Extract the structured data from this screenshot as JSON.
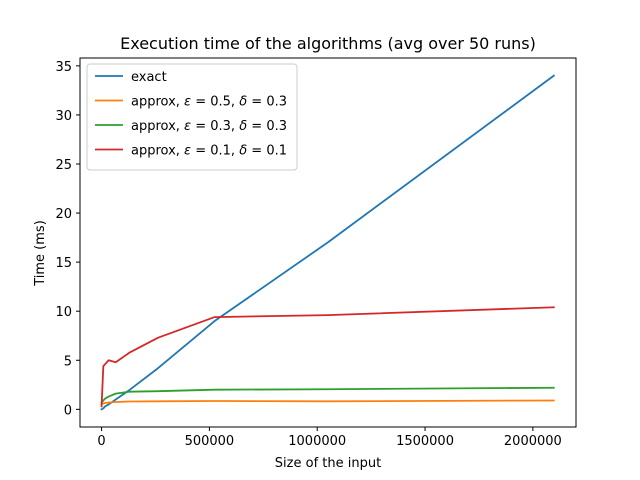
{
  "chart_data": {
    "type": "line",
    "title": "Execution time of the algorithms (avg over 50 runs)",
    "xlabel": "Size of the input",
    "ylabel": "Time (ms)",
    "xlim": [
      -100000,
      2200000
    ],
    "ylim": [
      -1.8,
      35.8
    ],
    "x_ticks": [
      0,
      500000,
      1000000,
      1500000,
      2000000
    ],
    "x_tick_labels": [
      "0",
      "500000",
      "1000000",
      "1500000",
      "2000000"
    ],
    "y_ticks": [
      0,
      5,
      10,
      15,
      20,
      25,
      30,
      35
    ],
    "y_tick_labels": [
      "0",
      "5",
      "10",
      "15",
      "20",
      "25",
      "30",
      "35"
    ],
    "grid": false,
    "legend_position": "top-left",
    "series": [
      {
        "name": "exact",
        "color": "#1f77b4",
        "x": [
          0,
          8192,
          16384,
          32768,
          65536,
          131072,
          262144,
          524288,
          1048576,
          2097152
        ],
        "y": [
          0.0,
          0.1,
          0.3,
          0.5,
          1.0,
          2.0,
          4.2,
          9.0,
          17.0,
          34.0
        ]
      },
      {
        "name": "approx, ε = 0.5, δ = 0.3",
        "label_parts": [
          "approx, ",
          "ε",
          " = 0.5, ",
          "δ",
          " = 0.3"
        ],
        "color": "#ff7f0e",
        "x": [
          0,
          8192,
          16384,
          32768,
          65536,
          131072,
          262144,
          524288,
          1048576,
          2097152
        ],
        "y": [
          0.5,
          0.6,
          0.65,
          0.7,
          0.75,
          0.8,
          0.82,
          0.85,
          0.82,
          0.9
        ]
      },
      {
        "name": "approx, ε = 0.3, δ = 0.3",
        "label_parts": [
          "approx, ",
          "ε",
          " = 0.3, ",
          "δ",
          " = 0.3"
        ],
        "color": "#2ca02c",
        "x": [
          0,
          8192,
          16384,
          32768,
          65536,
          131072,
          262144,
          524288,
          1048576,
          2097152
        ],
        "y": [
          0.7,
          0.9,
          1.1,
          1.3,
          1.6,
          1.8,
          1.85,
          2.0,
          2.05,
          2.2
        ]
      },
      {
        "name": "approx, ε = 0.1, δ = 0.1",
        "label_parts": [
          "approx, ",
          "ε",
          " = 0.1, ",
          "δ",
          " = 0.1"
        ],
        "color": "#d62728",
        "x": [
          0,
          8192,
          16384,
          32768,
          65536,
          131072,
          262144,
          524288,
          1048576,
          2097152
        ],
        "y": [
          0.3,
          4.4,
          4.6,
          5.0,
          4.8,
          5.8,
          7.3,
          9.4,
          9.6,
          10.4
        ]
      }
    ]
  }
}
